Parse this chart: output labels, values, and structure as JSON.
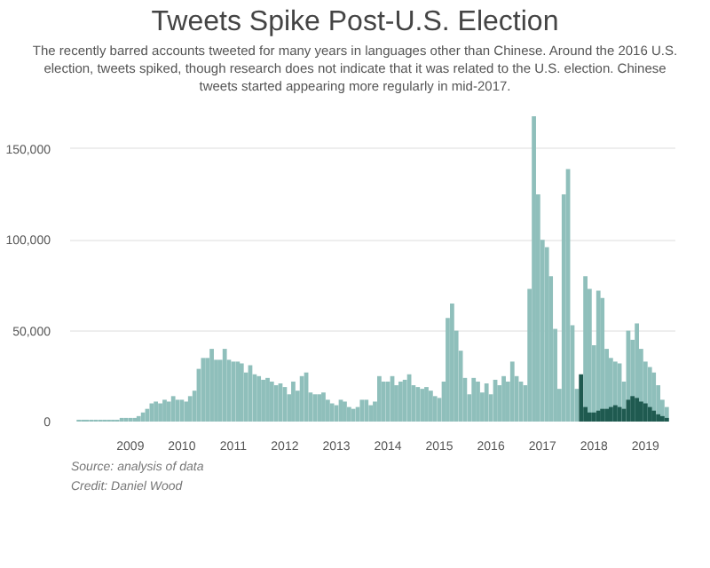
{
  "chart_data": {
    "type": "bar",
    "title": "Tweets Spike Post-U.S. Election",
    "subtitle": "The recently barred accounts tweeted for many years in languages other than Chinese. Around the 2016 U.S. election, tweets spiked, though research does not indicate that it was related to the U.S. election. Chinese tweets started appearing more regularly in mid-2017.",
    "annotations": [
      "Source: analysis of data",
      "Credit: Daniel Wood"
    ],
    "x": [
      "2008-01",
      "2008-02",
      "2008-03",
      "2008-04",
      "2008-05",
      "2008-06",
      "2008-07",
      "2008-08",
      "2008-09",
      "2008-10",
      "2008-11",
      "2008-12",
      "2009-01",
      "2009-02",
      "2009-03",
      "2009-04",
      "2009-05",
      "2009-06",
      "2009-07",
      "2009-08",
      "2009-09",
      "2009-10",
      "2009-11",
      "2009-12",
      "2010-01",
      "2010-02",
      "2010-03",
      "2010-04",
      "2010-05",
      "2010-06",
      "2010-07",
      "2010-08",
      "2010-09",
      "2010-10",
      "2010-11",
      "2010-12",
      "2011-01",
      "2011-02",
      "2011-03",
      "2011-04",
      "2011-05",
      "2011-06",
      "2011-07",
      "2011-08",
      "2011-09",
      "2011-10",
      "2011-11",
      "2011-12",
      "2012-01",
      "2012-02",
      "2012-03",
      "2012-04",
      "2012-05",
      "2012-06",
      "2012-07",
      "2012-08",
      "2012-09",
      "2012-10",
      "2012-11",
      "2012-12",
      "2013-01",
      "2013-02",
      "2013-03",
      "2013-04",
      "2013-05",
      "2013-06",
      "2013-07",
      "2013-08",
      "2013-09",
      "2013-10",
      "2013-11",
      "2013-12",
      "2014-01",
      "2014-02",
      "2014-03",
      "2014-04",
      "2014-05",
      "2014-06",
      "2014-07",
      "2014-08",
      "2014-09",
      "2014-10",
      "2014-11",
      "2014-12",
      "2015-01",
      "2015-02",
      "2015-03",
      "2015-04",
      "2015-05",
      "2015-06",
      "2015-07",
      "2015-08",
      "2015-09",
      "2015-10",
      "2015-11",
      "2015-12",
      "2016-01",
      "2016-02",
      "2016-03",
      "2016-04",
      "2016-05",
      "2016-06",
      "2016-07",
      "2016-08",
      "2016-09",
      "2016-10",
      "2016-11",
      "2016-12",
      "2017-01",
      "2017-02",
      "2017-03",
      "2017-04",
      "2017-05",
      "2017-06",
      "2017-07",
      "2017-08",
      "2017-09",
      "2017-10",
      "2017-11",
      "2017-12",
      "2018-01",
      "2018-02",
      "2018-03",
      "2018-04",
      "2018-05",
      "2018-06",
      "2018-07",
      "2018-08",
      "2018-09",
      "2018-10",
      "2018-11",
      "2018-12",
      "2019-01",
      "2019-02",
      "2019-03",
      "2019-04",
      "2019-05",
      "2019-06"
    ],
    "series": [
      {
        "color": "#8fbfbb",
        "values": [
          1000,
          1000,
          1000,
          1000,
          1000,
          1000,
          1000,
          1000,
          1000,
          1000,
          2000,
          2000,
          2000,
          2000,
          3000,
          5000,
          7000,
          10000,
          11000,
          10000,
          12000,
          11000,
          14000,
          12000,
          12000,
          11000,
          14000,
          17000,
          29000,
          35000,
          35000,
          40000,
          34000,
          34000,
          40000,
          34000,
          33000,
          33000,
          32000,
          27000,
          31000,
          26000,
          25000,
          23000,
          24000,
          22000,
          20000,
          21000,
          19000,
          15000,
          22000,
          17000,
          25000,
          27000,
          16000,
          15000,
          15000,
          16000,
          12000,
          10000,
          9000,
          12000,
          11000,
          8000,
          7000,
          8000,
          12000,
          12000,
          9000,
          11000,
          25000,
          22000,
          22000,
          25000,
          20000,
          22000,
          23000,
          26000,
          20000,
          19000,
          18000,
          19000,
          17000,
          14000,
          13000,
          22000,
          57000,
          65000,
          50000,
          39000,
          24000,
          15000,
          24000,
          22000,
          16000,
          21000,
          15000,
          23000,
          20000,
          25000,
          22000,
          33000,
          25000,
          22000,
          20000,
          73000,
          168000,
          125000,
          100000,
          96000,
          80000,
          51000,
          18000,
          125000,
          139000,
          53000,
          18000,
          null,
          80000,
          73000,
          42000,
          72000,
          68000,
          40000,
          35000,
          33000,
          32000,
          22000,
          50000,
          45000,
          54000,
          40000,
          33000,
          30000,
          27000,
          20000,
          12000,
          8000
        ]
      },
      {
        "color": "#1f5a50",
        "x": [
          "2017-10",
          "2017-11",
          "2017-12",
          "2018-01",
          "2018-02",
          "2018-03",
          "2018-04",
          "2018-05",
          "2018-06",
          "2018-07",
          "2018-08",
          "2018-09",
          "2018-10",
          "2018-11",
          "2018-12",
          "2019-01",
          "2019-02",
          "2019-03",
          "2019-04",
          "2019-05",
          "2019-06"
        ],
        "values": [
          26000,
          8000,
          5000,
          5000,
          6000,
          7000,
          7000,
          8000,
          9000,
          8000,
          7000,
          12000,
          14000,
          13000,
          11000,
          10000,
          8000,
          6000,
          4000,
          3000,
          2000
        ]
      }
    ],
    "xlim": [
      "2007-11",
      "2019-08"
    ],
    "xticks": [
      "2009",
      "2010",
      "2011",
      "2012",
      "2013",
      "2014",
      "2015",
      "2016",
      "2017",
      "2018",
      "2019"
    ],
    "ylim": [
      0,
      168000
    ],
    "yticks": [
      {
        "value": 0,
        "label": "0"
      },
      {
        "value": 50000,
        "label": "50,000"
      },
      {
        "value": 100000,
        "label": "100,000"
      },
      {
        "value": 150000,
        "label": "150,000"
      }
    ],
    "grid": "y"
  }
}
